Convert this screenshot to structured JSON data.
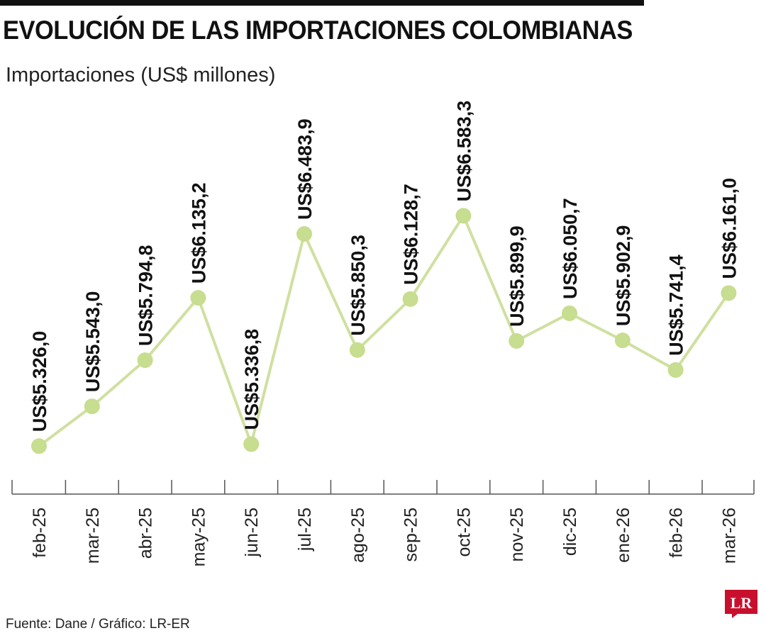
{
  "header": {
    "title": "EVOLUCIÓN DE LAS IMPORTACIONES COLOMBIANAS",
    "subtitle": "Importaciones (US$ millones)"
  },
  "footer": {
    "source": "Fuente: Dane / Gráfico: LR-ER",
    "logo_text": "LR"
  },
  "colors": {
    "line": "#cfe0a0",
    "marker": "#c7dd8f",
    "axis": "#555555",
    "text": "#111111",
    "logo": "#c8102e"
  },
  "chart_data": {
    "type": "line",
    "title": "EVOLUCIÓN DE LAS IMPORTACIONES COLOMBIANAS",
    "ylabel": "Importaciones (US$ millones)",
    "xlabel": "",
    "legend": "none",
    "grid": false,
    "ylim": [
      5300,
      6600
    ],
    "points": [
      {
        "x": "feb-25",
        "y": 5326.0,
        "label": "US$5.326,0"
      },
      {
        "x": "mar-25",
        "y": 5543.0,
        "label": "US$5.543,0"
      },
      {
        "x": "abr-25",
        "y": 5794.8,
        "label": "US$5.794,8"
      },
      {
        "x": "may-25",
        "y": 6135.2,
        "label": "US$6.135,2"
      },
      {
        "x": "jun-25",
        "y": 5336.8,
        "label": "US$5.336,8"
      },
      {
        "x": "jul-25",
        "y": 6483.9,
        "label": "US$6.483,9"
      },
      {
        "x": "ago-25",
        "y": 5850.3,
        "label": "US$5.850,3"
      },
      {
        "x": "sep-25",
        "y": 6128.7,
        "label": "US$6.128,7"
      },
      {
        "x": "oct-25",
        "y": 6583.3,
        "label": "US$6.583,3"
      },
      {
        "x": "nov-25",
        "y": 5899.9,
        "label": "US$5.899,9"
      },
      {
        "x": "dic-25",
        "y": 6050.7,
        "label": "US$6.050,7"
      },
      {
        "x": "ene-26",
        "y": 5902.9,
        "label": "US$5.902,9"
      },
      {
        "x": "feb-26",
        "y": 5741.4,
        "label": "US$5.741,4"
      },
      {
        "x": "mar-26",
        "y": 6161.0,
        "label": "US$6.161,0"
      }
    ]
  }
}
